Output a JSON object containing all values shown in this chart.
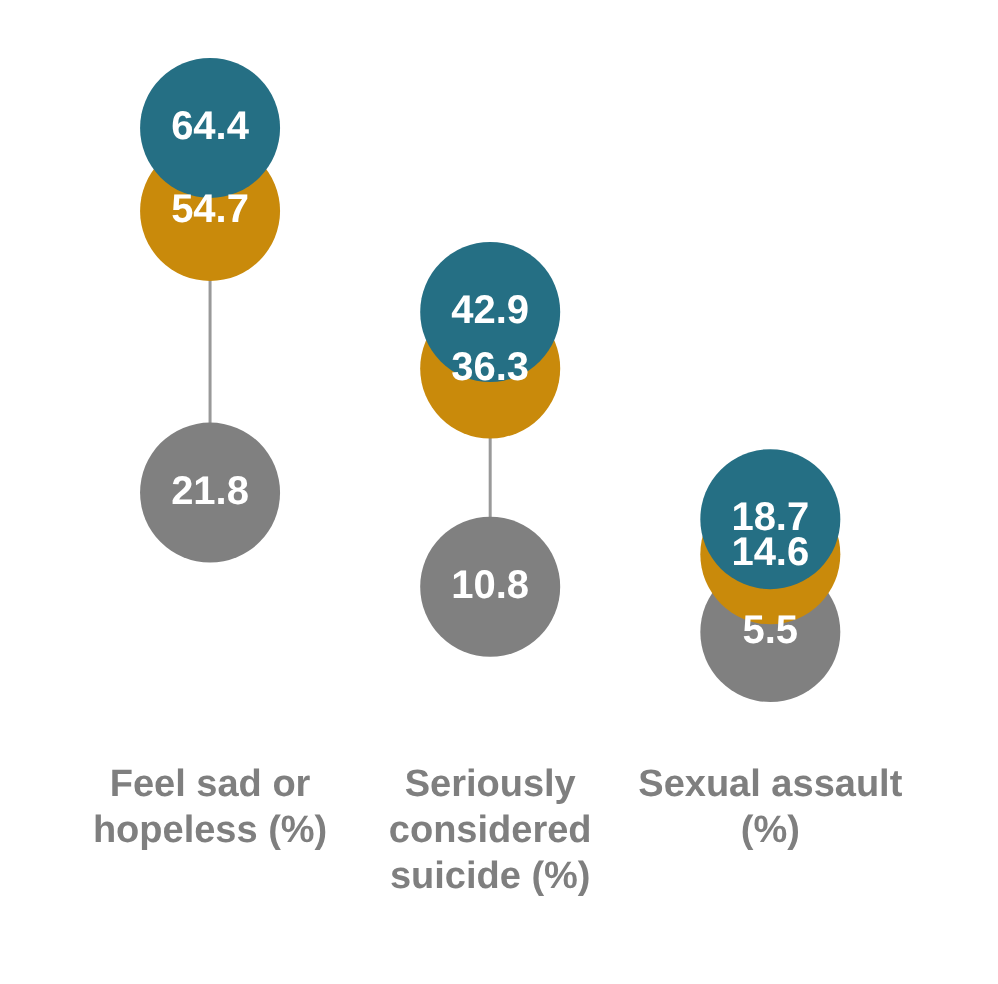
{
  "chart_data": {
    "type": "scatter",
    "categories": [
      "Feel sad or hopeless (%)",
      "Seriously considered suicide (%)",
      "Sexual assault (%)"
    ],
    "series": [
      {
        "color": "#256f84",
        "values": [
          64.4,
          42.9,
          18.7
        ]
      },
      {
        "color": "#c98a0b",
        "values": [
          54.7,
          36.3,
          14.6
        ]
      },
      {
        "color": "#808080",
        "values": [
          21.8,
          10.8,
          5.5
        ]
      }
    ],
    "data_labels": true,
    "legend": false,
    "marker": "circle",
    "tick_labels": "x"
  }
}
